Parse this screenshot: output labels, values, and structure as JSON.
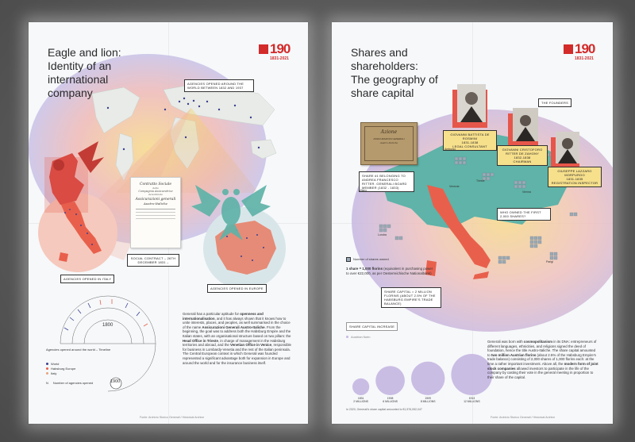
{
  "left": {
    "title": "Eagle and lion:\nIdentity of an\ninternational\ncompany",
    "logo": {
      "number": "190",
      "years": "1831-2021"
    },
    "callouts": {
      "agencies_world": "AGENCIES OPENED AROUND THE WORLD BETWEEN 1832 AND 1937",
      "agencies_italy": "AGENCIES OPENED IN ITALY",
      "agencies_europe": "AGENCIES OPENED IN EUROPE",
      "social_contract": "SOCIAL CONTRACT – 26TH DECEMBER 1831 –"
    },
    "document_lines": [
      "Contratto Sociale",
      "della",
      "Compagnia Assicuratrice",
      "denominata",
      "Assicurazioni generali",
      "Austro-Italiche"
    ],
    "timeline": {
      "label_1800": "1800",
      "label_1900": "1900",
      "title": "Agencies opened around the world – Timeline",
      "legend": [
        {
          "label": "World",
          "color": "#3a3f8f"
        },
        {
          "label": "Habsburg Europe",
          "color": "#e8604c"
        },
        {
          "label": "Italy",
          "color": "#e8a27a"
        }
      ],
      "count_legend_n": "N",
      "count_legend_text": "Number of agencies opened"
    },
    "paragraph": [
      {
        "t": "Generali has a particular aptitude for ",
        "b": false
      },
      {
        "t": "openness and internationalisation",
        "b": true
      },
      {
        "t": ", and it has always shown that it knows how to unite interests, places, and peoples, as well summarised in the choice of the name ",
        "b": false
      },
      {
        "t": "Assicurazioni Generali Austro-Italiche",
        "b": true
      },
      {
        "t": ". From the beginning, the goal was to address both the Habsburg Empire and the Italian states, with an organisational structure based on two pillars: the ",
        "b": false
      },
      {
        "t": "Head Office in Trieste",
        "b": true
      },
      {
        "t": ", in charge of management in the Habsburg territories and abroad, and the ",
        "b": false
      },
      {
        "t": "Venetian Office in Venice",
        "b": true
      },
      {
        "t": ", responsible for business in Lombardy-Venetia and the rest of the Italian peninsula. The Central European context in which Generali was founded represented a significant advantage both for expansion in Europe and around the world and for the insurance business itself.",
        "b": false
      }
    ],
    "footer": "Fonte: Archivio Storico Generali / Historical Archive"
  },
  "right": {
    "title": "Shares and\nshareholders:\nThe geography of\nshare capital",
    "logo": {
      "number": "190",
      "years": "1831-2021"
    },
    "founders_label": "THE FOUNDERS",
    "founders": [
      {
        "name": "GIOVANNI BATTISTA DE ROSMINI",
        "years": "1831-1838",
        "role": "LEGAL CONSULTANT"
      },
      {
        "name": "GIOVANNI CRISTOFORO RITTER DE ZAHONY",
        "years": "1832-1838",
        "role": "CHAIRMAN"
      },
      {
        "name": "GIUSEPPE LAZZARO MORPURGO",
        "years": "1831-1835",
        "role": "REGISTRATION INSPECTOR"
      }
    ],
    "callouts": {
      "share1": "SHARE #1 BELONGING TO ANDREA FRANCESCO RITTER. GENERALI BOARD MEMBER (1832 - 1833)",
      "who_owned": "WHO OWNED THE FIRST 2,000 SHARES?",
      "share_capital": "SHARE CAPITAL = 2 MILLION FLORINS (ABOUT 2.5% OF THE HABSBURG EMPIRE'S TRADE BALANCE)"
    },
    "certificate_lines": [
      "Azione",
      "ASSICURAZIONI GENERALI",
      "Austro-Italiche"
    ],
    "cities": [
      "Amburgo",
      "Trieste",
      "Venezia",
      "Vienna",
      "Milano",
      "Londra",
      "Parigi"
    ],
    "legend_shares": "Number of shares owned",
    "share_value": {
      "lead": "1 share = 1,000 florins",
      "rest": " (equivalent in purchasing power to over €22,000, as per Oesterreichische Nationalbank)"
    },
    "capital_increase": {
      "label": "Share capital increase",
      "legend": "Austrian florin",
      "bubbles": [
        {
          "year": "1831",
          "amount": "2 MILLIONS",
          "value": 2
        },
        {
          "year": "1908",
          "amount": "6 MILLIONS",
          "value": 6
        },
        {
          "year": "1909",
          "amount": "8 MILLIONS",
          "value": 8
        },
        {
          "year": "1913",
          "amount": "12 MILLIONS",
          "value": 12
        }
      ],
      "note": "In 2020, Generali's share capital amounted to €1,576,052,047"
    },
    "paragraph": [
      {
        "t": "Generali was born with ",
        "b": false
      },
      {
        "t": "cosmopolitanism",
        "b": true
      },
      {
        "t": " in its DNA: entrepreneurs of different languages, ethnicities, and religions signed the deed of foundation, hence the title Austro-Italiche. The share capital amounted to ",
        "b": false
      },
      {
        "t": "two million Austrian florins",
        "b": true
      },
      {
        "t": " (about 2.5% of the Habsburg Empire's trade balance) consisting of 2,000 shares of 1,000 florins each: at the time a rather important investment. Above all, the ",
        "b": false
      },
      {
        "t": "modern form of joint stock companies",
        "b": true
      },
      {
        "t": " allowed investors to participate in the life of the company by casting their vote in the general meeting in proportion to their share of the capital.",
        "b": false
      }
    ],
    "footer": "Fonte: Archivio Storico Generali / Historical Archive"
  },
  "colors": {
    "accent_red": "#d32a2a",
    "coral": "#e8604c",
    "teal": "#5fb3a8",
    "navy": "#3a3f8f",
    "yellow": "#f2d76b",
    "lavender": "#c6b7e2"
  }
}
